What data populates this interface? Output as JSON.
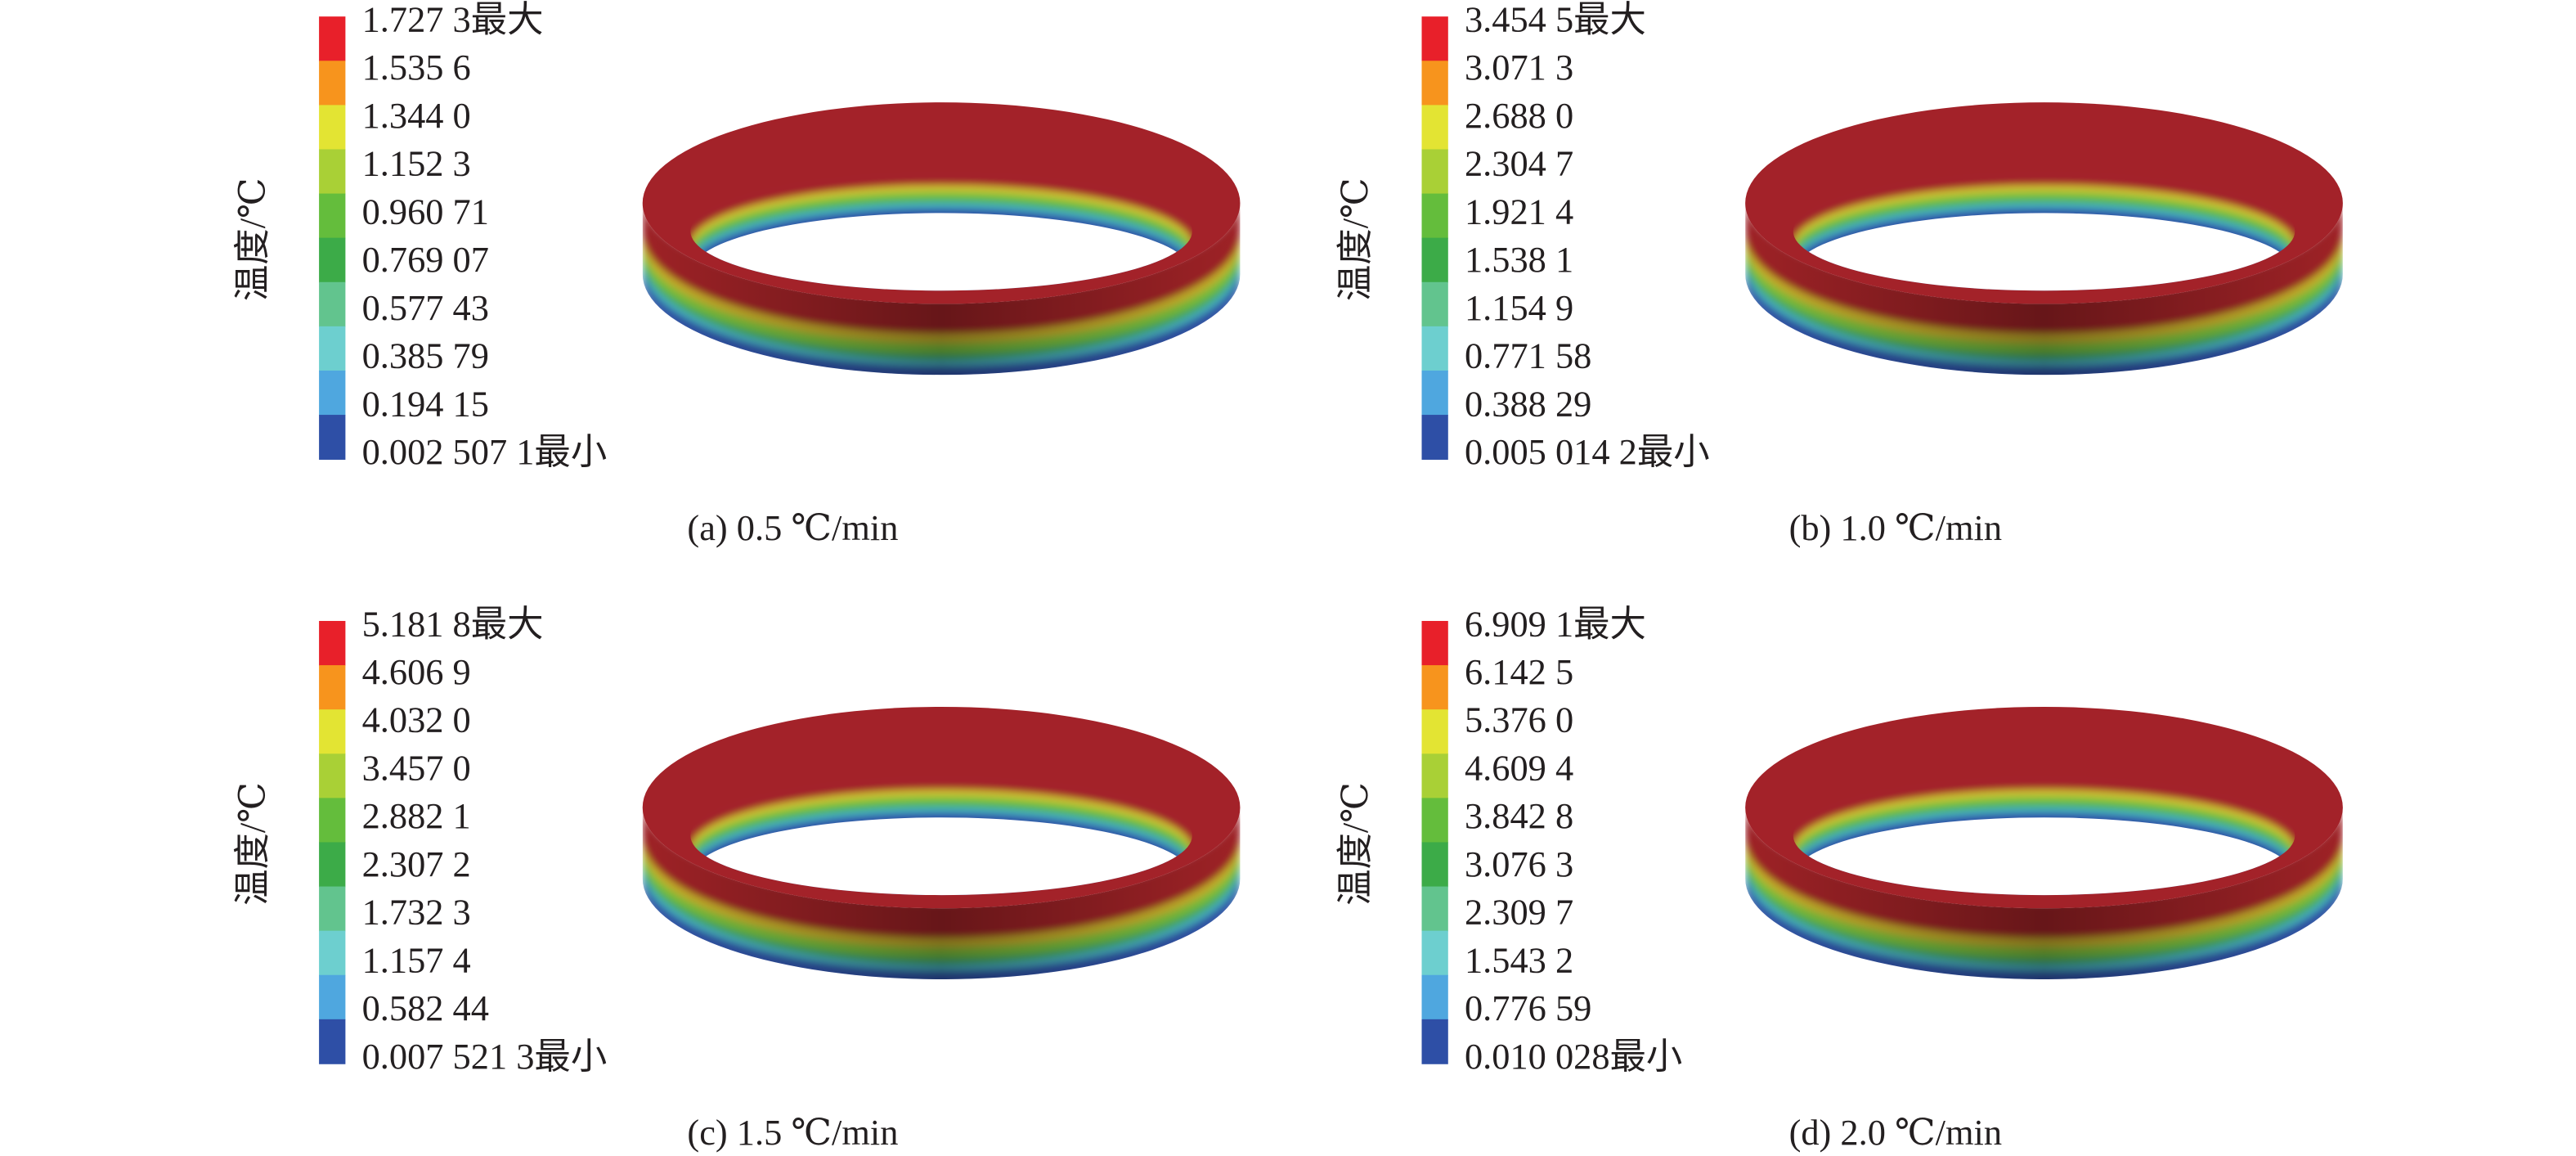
{
  "panels": [
    {
      "legend_title": "温度/℃",
      "legend_labels": [
        "1.727 3最大",
        "1.535 6",
        "1.344 0",
        "1.152 3",
        "0.960 71",
        "0.769 07",
        "0.577 43",
        "0.385 79",
        "0.194 15",
        "0.002 507 1最小"
      ],
      "caption": "(a) 0.5 ℃/min"
    },
    {
      "legend_title": "温度/℃",
      "legend_labels": [
        "3.454 5最大",
        "3.071 3",
        "2.688 0",
        "2.304 7",
        "1.921 4",
        "1.538 1",
        "1.154 9",
        "0.771 58",
        "0.388 29",
        "0.005 014 2最小"
      ],
      "caption": "(b) 1.0 ℃/min"
    },
    {
      "legend_title": "温度/℃",
      "legend_labels": [
        "5.181 8最大",
        "4.606 9",
        "4.032 0",
        "3.457 0",
        "2.882 1",
        "2.307 2",
        "1.732 3",
        "1.157 4",
        "0.582 44",
        "0.007 521 3最小"
      ],
      "caption": "(c) 1.5 ℃/min"
    },
    {
      "legend_title": "温度/℃",
      "legend_labels": [
        "6.909 1最大",
        "6.142 5",
        "5.376 0",
        "4.609 4",
        "3.842 8",
        "3.076 3",
        "2.309 7",
        "1.543 2",
        "0.776 59",
        "0.010 028最小"
      ],
      "caption": "(d) 2.0 ℃/min"
    }
  ]
}
